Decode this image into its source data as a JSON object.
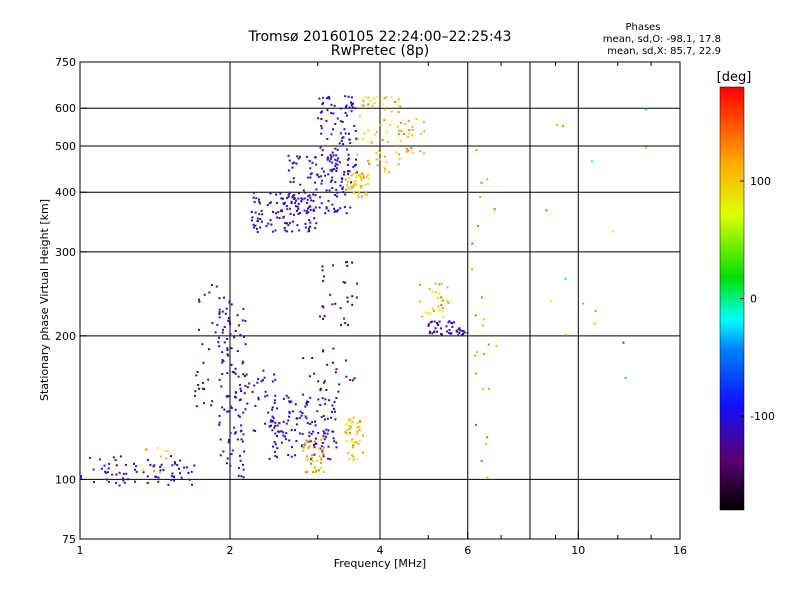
{
  "header": {
    "title_line1": "Tromsø 20160105 22:24:00–22:25:43",
    "title_line2": "RwPretec (8p)",
    "stats_title": "Phases",
    "stats_line1": "mean, sd,O: -98.1, 17.8",
    "stats_line2": "mean, sd,X: 85.7, 22.9"
  },
  "colorbar": {
    "unit": "[deg]",
    "ticks": [
      "100",
      "0",
      "-100"
    ],
    "tick_values": [
      100,
      0,
      -100
    ],
    "range": [
      -180,
      180
    ]
  },
  "chart_data": {
    "type": "scatter",
    "xlabel": "Frequency [MHz]",
    "ylabel": "Stationary phase Virtual Height [km]",
    "x_scale": "log",
    "y_scale": "log",
    "xlim": [
      1,
      16
    ],
    "ylim": [
      75,
      750
    ],
    "x_ticks": [
      1,
      2,
      4,
      6,
      10,
      16
    ],
    "x_tick_labels": [
      "1",
      "2",
      "4",
      "6",
      "10",
      "16"
    ],
    "x_grid": [
      2,
      4,
      6,
      8,
      10
    ],
    "x_minor_ticks": [
      3,
      5,
      7,
      8,
      9,
      12,
      14
    ],
    "y_ticks": [
      75,
      100,
      200,
      300,
      400,
      500,
      600,
      750
    ],
    "y_tick_labels": [
      "75",
      "100",
      "200",
      "300",
      "400",
      "500",
      "600",
      "750"
    ],
    "y_grid": [
      100,
      200,
      300,
      400,
      500,
      600
    ],
    "grid": true,
    "color_by": "phase [deg]",
    "clusters": [
      {
        "x": [
          1.0,
          1.7
        ],
        "y": [
          97,
          112
        ],
        "phase": [
          -115,
          -85
        ],
        "n": 75
      },
      {
        "x": [
          1.3,
          1.5
        ],
        "y": [
          103,
          118
        ],
        "phase": [
          60,
          130
        ],
        "n": 10
      },
      {
        "x": [
          1.7,
          2.0
        ],
        "y": [
          140,
          270
        ],
        "phase": [
          -125,
          -105
        ],
        "n": 45
      },
      {
        "x": [
          1.9,
          2.15
        ],
        "y": [
          100,
          235
        ],
        "phase": [
          -120,
          -95
        ],
        "n": 85
      },
      {
        "x": [
          2.0,
          2.5
        ],
        "y": [
          125,
          175
        ],
        "phase": [
          -115,
          -85
        ],
        "n": 45
      },
      {
        "x": [
          2.4,
          3.3
        ],
        "y": [
          110,
          150
        ],
        "phase": [
          -120,
          -85
        ],
        "n": 140
      },
      {
        "x": [
          2.8,
          3.1
        ],
        "y": [
          103,
          122
        ],
        "phase": [
          90,
          140
        ],
        "n": 40
      },
      {
        "x": [
          3.4,
          3.7
        ],
        "y": [
          110,
          135
        ],
        "phase": [
          70,
          140
        ],
        "n": 45
      },
      {
        "x": [
          2.8,
          3.6
        ],
        "y": [
          150,
          190
        ],
        "phase": [
          -150,
          -110
        ],
        "n": 25
      },
      {
        "x": [
          3.0,
          3.6
        ],
        "y": [
          210,
          290
        ],
        "phase": [
          -150,
          -110
        ],
        "n": 30
      },
      {
        "x": [
          2.2,
          3.0
        ],
        "y": [
          330,
          400
        ],
        "phase": [
          -125,
          -95
        ],
        "n": 110
      },
      {
        "x": [
          2.6,
          3.5
        ],
        "y": [
          360,
          480
        ],
        "phase": [
          -120,
          -90
        ],
        "n": 110
      },
      {
        "x": [
          3.0,
          3.6
        ],
        "y": [
          420,
          640
        ],
        "phase": [
          -120,
          -80
        ],
        "n": 90
      },
      {
        "x": [
          3.4,
          3.8
        ],
        "y": [
          390,
          440
        ],
        "phase": [
          80,
          130
        ],
        "n": 45
      },
      {
        "x": [
          3.6,
          4.4
        ],
        "y": [
          440,
          640
        ],
        "phase": [
          70,
          140
        ],
        "n": 60
      },
      {
        "x": [
          4.3,
          5.0
        ],
        "y": [
          480,
          570
        ],
        "phase": [
          90,
          140
        ],
        "n": 25
      },
      {
        "x": [
          4.8,
          5.5
        ],
        "y": [
          215,
          260
        ],
        "phase": [
          70,
          140
        ],
        "n": 30
      },
      {
        "x": [
          5.0,
          6.0
        ],
        "y": [
          200,
          215
        ],
        "phase": [
          -125,
          -100
        ],
        "n": 45
      },
      {
        "x": [
          6.1,
          6.9
        ],
        "y": [
          100,
          520
        ],
        "phase": [
          100,
          150
        ],
        "n": 25
      },
      {
        "x": [
          8.5,
          14.5
        ],
        "y": [
          145,
          600
        ],
        "phase": [
          -80,
          160
        ],
        "n": 15
      }
    ]
  }
}
